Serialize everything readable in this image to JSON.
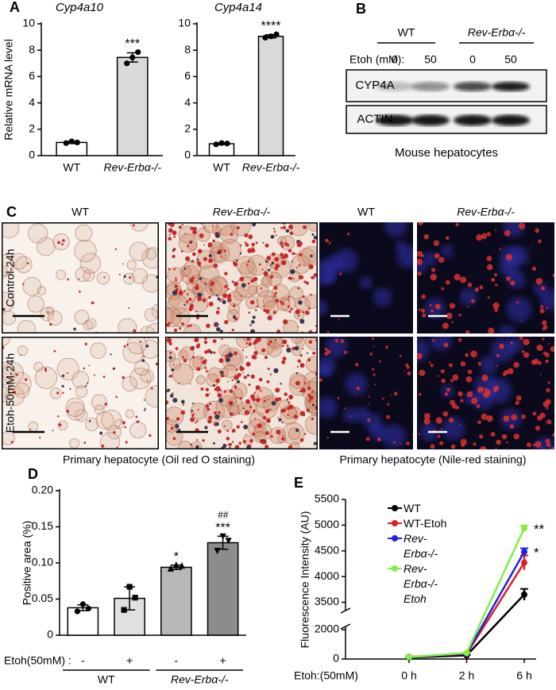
{
  "chart_data": [
    {
      "type": "bar",
      "panel": "A",
      "title": "Cyp4a10",
      "ylabel": "Relative mRNA level",
      "categories": [
        "WT",
        "Rev-Erbα-/-"
      ],
      "values": [
        1.0,
        7.45
      ],
      "errors": [
        0.08,
        0.35
      ],
      "points": [
        [
          0.95,
          1.08,
          1.0
        ],
        [
          7.0,
          7.45,
          7.85
        ]
      ],
      "colors": [
        "#ffffff",
        "#d9d9d9"
      ],
      "markers": [
        "circle",
        "circle"
      ],
      "annotations": [
        null,
        "***"
      ],
      "ylim": [
        0,
        10
      ],
      "yticks": [
        0,
        2,
        4,
        6,
        8,
        10
      ]
    },
    {
      "type": "bar",
      "title": "Cyp4a14",
      "categories": [
        "WT",
        "Rev-Erbα-/-"
      ],
      "values": [
        0.9,
        9.05
      ],
      "errors": [
        0.06,
        0.12
      ],
      "points": [
        [
          0.85,
          0.95,
          0.92
        ],
        [
          8.95,
          9.05,
          9.2
        ]
      ],
      "colors": [
        "#ffffff",
        "#d9d9d9"
      ],
      "markers": [
        "circle",
        "circle"
      ],
      "annotations": [
        null,
        "****"
      ],
      "ylim": [
        0,
        10
      ],
      "yticks": [
        0,
        2,
        4,
        6,
        8,
        10
      ]
    },
    {
      "type": "bar",
      "panel": "D",
      "ylabel": "Positive area (%)",
      "xlabel": "Etoh(50mM) :",
      "categories": [
        "-",
        "+",
        "-",
        "+"
      ],
      "group_labels": [
        "WT",
        "Rev-Erbα-/-"
      ],
      "values": [
        0.038,
        0.051,
        0.094,
        0.128
      ],
      "errors": [
        0.004,
        0.016,
        0.003,
        0.009
      ],
      "points": [
        [
          0.033,
          0.043,
          0.037
        ],
        [
          0.035,
          0.067,
          0.052
        ],
        [
          0.092,
          0.097,
          0.096
        ],
        [
          0.117,
          0.137,
          0.131
        ]
      ],
      "colors": [
        "#ffffff",
        "#e0e0e0",
        "#b8b8b8",
        "#8c8c8c"
      ],
      "markers": [
        "circle",
        "square",
        "triangle",
        "triangle-down"
      ],
      "annotations": [
        null,
        null,
        "*",
        "***"
      ],
      "annotations_2": [
        null,
        null,
        null,
        "##"
      ],
      "ylim": [
        0,
        0.2
      ],
      "yticks": [
        0,
        0.05,
        {
          "value": 0.1,
          "label": "0.10"
        },
        0.15,
        {
          "value": 0.2,
          "label": "0.20"
        }
      ]
    },
    {
      "type": "line",
      "panel": "E",
      "ylabel": "Fluorescence Intensity (AU)",
      "xlabel": "Etoh:(50mM)",
      "categories": [
        "0 h",
        "2 h",
        "6 h"
      ],
      "series": [
        {
          "name": "WT",
          "color": "#000000",
          "values": [
            100,
            250,
            3650
          ],
          "errors": [
            30,
            20,
            110
          ]
        },
        {
          "name": "WT-Etoh",
          "color": "#e02020",
          "values": [
            150,
            350,
            4270
          ],
          "errors": [
            30,
            30,
            140
          ]
        },
        {
          "name": "Rev-Erbα-/-",
          "color": "#2020e0",
          "values": [
            120,
            380,
            4480
          ],
          "errors": [
            30,
            30,
            70
          ],
          "annotation": "*"
        },
        {
          "name": "Rev-Erbα-/- Etoh",
          "color": "#80f040",
          "values": [
            130,
            420,
            4940
          ],
          "errors": [
            20,
            30,
            50
          ],
          "annotation": "**"
        }
      ],
      "ylim_segments": [
        [
          0,
          2000
        ],
        [
          3400,
          5500
        ]
      ],
      "yticks": [
        0,
        2000,
        3500,
        4000,
        4500,
        5000,
        5500
      ]
    }
  ],
  "blot": {
    "label": "B",
    "groups": [
      "WT",
      "Rev-Erbα-/-"
    ],
    "treatment_label": "Etoh (mM):",
    "doses": [
      0,
      50,
      0,
      50
    ],
    "rows": [
      "CYP4A",
      "ACTIN"
    ],
    "caption": "Mouse hepatocytes"
  },
  "images": {
    "label": "C",
    "columns": [
      "WT",
      "Rev-Erbα-/-",
      "WT",
      "Rev-Erbα-/-"
    ],
    "rows": [
      "Control-24h",
      "Etoh-50mM-24h"
    ],
    "captions": [
      "Primary hepatocyte (Oil red O staining)",
      "Primary hepatocyte (Nile-red staining)"
    ]
  }
}
